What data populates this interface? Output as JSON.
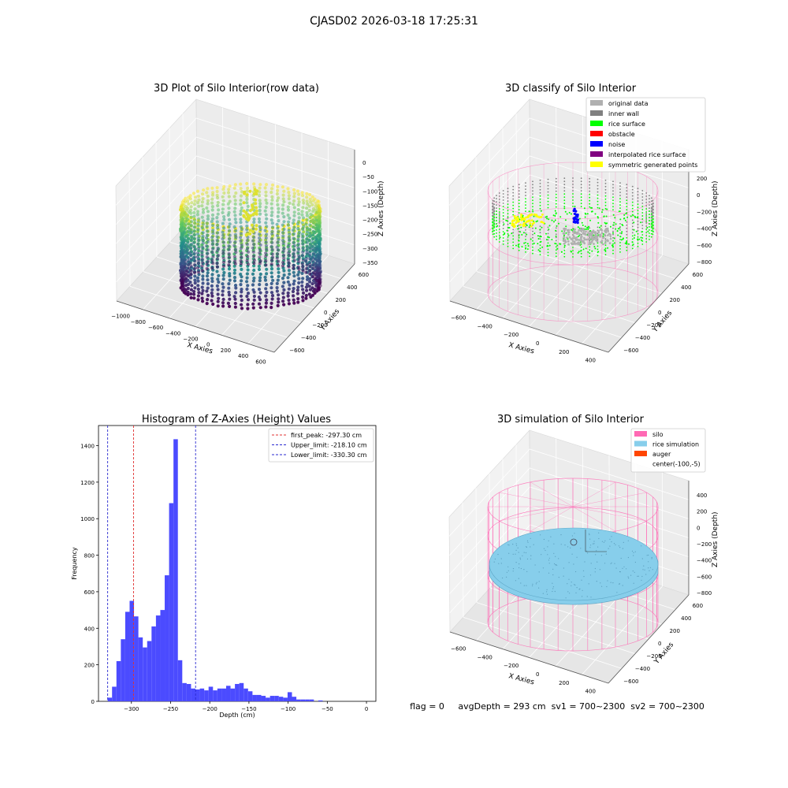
{
  "suptitle": "CJASD02 2026-03-18 17:25:31",
  "status_line": "flag = 0     avgDepth = 293 cm  sv1 = 700~2300  sv2 = 700~2300",
  "colors": {
    "hist_bar": "#4b4bff",
    "first_peak": "#e03030",
    "limit": "#2a2ad0",
    "silo": "#ff69b4",
    "rice_simulation": "#87ceeb",
    "auger": "#ff4500",
    "original_data": "#b0b0b0",
    "inner_wall": "#808080",
    "rice_surface": "#00ff00",
    "obstacle": "#ff0000",
    "noise": "#0000ff",
    "interpolated": "#800080",
    "symmetric": "#ffff00"
  },
  "chart_data": [
    {
      "type": "scatter",
      "projection": "3d",
      "title": "3D Plot of Silo Interior(row data)",
      "xlabel": "X Axies",
      "ylabel": "Y Axies",
      "zlabel": "Z Axies (Depth)",
      "x_ticks": [
        "−1000",
        "−800",
        "−600",
        "−400",
        "−200",
        "0",
        "200",
        "400",
        "600"
      ],
      "y_ticks": [
        "−600",
        "−400",
        "−200",
        "0",
        "200",
        "400",
        "600"
      ],
      "z_ticks": [
        "0",
        "−50",
        "−100",
        "−150",
        "−200",
        "−250",
        "−300",
        "−350"
      ],
      "colormap": "viridis"
    },
    {
      "type": "scatter",
      "projection": "3d",
      "title": "3D classify of Silo Interior",
      "xlabel": "X Axies",
      "ylabel": "Y Axies",
      "zlabel": "Z Axies (Depth)",
      "x_ticks": [
        "−600",
        "−400",
        "−200",
        "0",
        "200",
        "400"
      ],
      "y_ticks": [
        "−600",
        "−400",
        "−200",
        "0",
        "200",
        "400",
        "600"
      ],
      "z_ticks": [
        "200",
        "0",
        "−200",
        "−400",
        "−600",
        "−800"
      ],
      "z_top_partial": "00",
      "legend": [
        {
          "label": "original data",
          "color": "#b0b0b0"
        },
        {
          "label": "inner wall",
          "color": "#808080"
        },
        {
          "label": "rice surface",
          "color": "#00ff00"
        },
        {
          "label": "obstacle",
          "color": "#ff0000"
        },
        {
          "label": "noise",
          "color": "#0000ff"
        },
        {
          "label": "interpolated rice surface",
          "color": "#800080"
        },
        {
          "label": "symmetric generated points",
          "color": "#ffff00"
        }
      ]
    },
    {
      "type": "bar",
      "title": "Histogram of Z-Axies (Height) Values",
      "xlabel": "Depth (cm)",
      "ylabel": "Frequency",
      "xlim": [
        -342,
        12
      ],
      "ylim": [
        0,
        1510
      ],
      "x_ticks": [
        -300,
        -250,
        -200,
        -150,
        -100,
        -50,
        0
      ],
      "y_ticks": [
        0,
        200,
        400,
        600,
        800,
        1000,
        1200,
        1400
      ],
      "bin_start": -330.3,
      "bin_width": 5.6,
      "values": [
        20,
        80,
        220,
        340,
        490,
        550,
        465,
        350,
        295,
        330,
        410,
        470,
        500,
        690,
        1085,
        1435,
        225,
        100,
        95,
        70,
        65,
        70,
        60,
        80,
        60,
        70,
        70,
        85,
        70,
        95,
        100,
        70,
        55,
        35,
        35,
        30,
        20,
        30,
        30,
        25,
        20,
        50,
        25,
        10,
        10,
        10,
        10,
        0,
        5
      ],
      "lines": [
        {
          "label": "first_peak: -297.30 cm",
          "x": -297.3,
          "color": "#e03030"
        },
        {
          "label": "Upper_limit: -218.10 cm",
          "x": -218.1,
          "color": "#2a2ad0"
        },
        {
          "label": "Lower_limit: -330.30 cm",
          "x": -330.3,
          "color": "#2a2ad0"
        }
      ]
    },
    {
      "type": "scatter",
      "projection": "3d",
      "title": "3D simulation of Silo Interior",
      "xlabel": "X Axies",
      "ylabel": "Y Axies",
      "zlabel": "Z Axies (Depth)",
      "x_ticks": [
        "−600",
        "−400",
        "−200",
        "0",
        "200",
        "400"
      ],
      "y_ticks": [
        "−600",
        "−400",
        "−200",
        "0",
        "200",
        "400",
        "600"
      ],
      "z_ticks": [
        "400",
        "200",
        "0",
        "−200",
        "−400",
        "−600",
        "−800"
      ],
      "legend": [
        {
          "label": "silo",
          "color": "#ff69b4"
        },
        {
          "label": "rice simulation",
          "color": "#87ceeb"
        },
        {
          "label": "auger",
          "color": "#ff4500"
        },
        {
          "label": "center(-100,-5)",
          "color": ""
        }
      ]
    }
  ]
}
